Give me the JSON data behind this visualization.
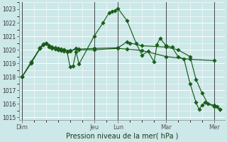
{
  "xlabel": "Pression niveau de la mer( hPa )",
  "bg_color": "#cce8e8",
  "grid_color": "#ffffff",
  "line_color": "#1a5c1a",
  "ylim": [
    1014.8,
    1023.5
  ],
  "yticks": [
    1015,
    1016,
    1017,
    1018,
    1019,
    1020,
    1021,
    1022,
    1023
  ],
  "day_labels": [
    "Dim",
    "Jeu",
    "Lun",
    "Mar",
    "Mer"
  ],
  "day_positions": [
    0,
    48,
    64,
    96,
    128
  ],
  "xlim": [
    -2,
    135
  ],
  "series1": [
    [
      0,
      1018.0
    ],
    [
      6,
      1019.0
    ],
    [
      12,
      1020.1
    ],
    [
      14,
      1020.4
    ],
    [
      16,
      1020.5
    ],
    [
      18,
      1020.2
    ],
    [
      20,
      1020.15
    ],
    [
      22,
      1020.05
    ],
    [
      24,
      1020.0
    ],
    [
      26,
      1019.95
    ],
    [
      28,
      1019.9
    ],
    [
      30,
      1019.85
    ],
    [
      32,
      1018.75
    ],
    [
      34,
      1018.8
    ],
    [
      36,
      1019.85
    ],
    [
      38,
      1018.95
    ],
    [
      48,
      1021.0
    ],
    [
      54,
      1022.0
    ],
    [
      58,
      1022.75
    ],
    [
      60,
      1022.85
    ],
    [
      62,
      1022.9
    ],
    [
      64,
      1023.05
    ],
    [
      70,
      1022.15
    ],
    [
      76,
      1020.5
    ],
    [
      80,
      1019.6
    ],
    [
      84,
      1019.9
    ],
    [
      88,
      1019.1
    ],
    [
      90,
      1020.4
    ],
    [
      92,
      1020.85
    ],
    [
      96,
      1020.3
    ],
    [
      100,
      1020.2
    ],
    [
      104,
      1019.5
    ],
    [
      108,
      1019.3
    ],
    [
      112,
      1017.5
    ],
    [
      116,
      1016.1
    ],
    [
      118,
      1015.6
    ],
    [
      120,
      1015.9
    ],
    [
      122,
      1016.1
    ],
    [
      128,
      1015.9
    ],
    [
      130,
      1015.8
    ],
    [
      132,
      1015.6
    ]
  ],
  "series2": [
    [
      0,
      1018.0
    ],
    [
      6,
      1019.1
    ],
    [
      12,
      1020.1
    ],
    [
      16,
      1020.5
    ],
    [
      20,
      1020.1
    ],
    [
      24,
      1020.0
    ],
    [
      28,
      1020.0
    ],
    [
      32,
      1019.9
    ],
    [
      36,
      1020.1
    ],
    [
      38,
      1020.0
    ],
    [
      48,
      1020.0
    ],
    [
      64,
      1020.1
    ],
    [
      70,
      1020.05
    ],
    [
      80,
      1019.95
    ],
    [
      96,
      1019.5
    ],
    [
      112,
      1019.3
    ],
    [
      128,
      1019.2
    ]
  ],
  "series3": [
    [
      0,
      1018.0
    ],
    [
      6,
      1019.05
    ],
    [
      12,
      1020.15
    ],
    [
      14,
      1020.45
    ],
    [
      16,
      1020.5
    ],
    [
      18,
      1020.3
    ],
    [
      20,
      1020.2
    ],
    [
      22,
      1020.15
    ],
    [
      24,
      1020.1
    ],
    [
      26,
      1020.05
    ],
    [
      28,
      1020.0
    ],
    [
      32,
      1019.95
    ],
    [
      38,
      1020.05
    ],
    [
      48,
      1020.1
    ],
    [
      64,
      1020.15
    ],
    [
      70,
      1020.6
    ],
    [
      72,
      1020.5
    ],
    [
      80,
      1020.3
    ],
    [
      96,
      1020.2
    ],
    [
      104,
      1020.0
    ],
    [
      112,
      1019.5
    ],
    [
      116,
      1017.8
    ],
    [
      120,
      1016.8
    ],
    [
      124,
      1016.0
    ],
    [
      128,
      1015.8
    ],
    [
      132,
      1015.6
    ]
  ]
}
